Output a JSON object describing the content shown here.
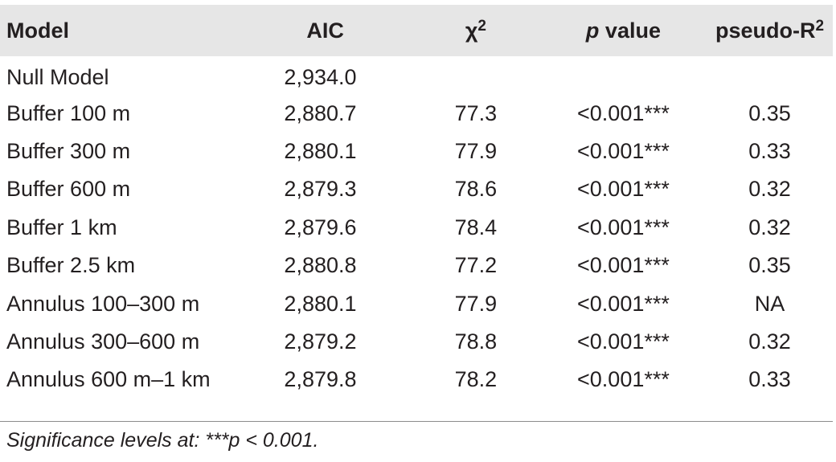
{
  "table": {
    "headers": {
      "model": "Model",
      "aic": "AIC",
      "chi_base": "χ",
      "chi_sup": "2",
      "p_italic": "p",
      "p_rest": " value",
      "r2_base": "pseudo-R",
      "r2_sup": "2"
    },
    "rows": [
      {
        "model": "Null Model",
        "aic": "2,934.0",
        "chi2": "",
        "p": "",
        "r2": ""
      },
      {
        "model": "Buffer 100 m",
        "aic": "2,880.7",
        "chi2": "77.3",
        "p": "<0.001***",
        "r2": "0.35"
      },
      {
        "model": "Buffer 300 m",
        "aic": "2,880.1",
        "chi2": "77.9",
        "p": "<0.001***",
        "r2": "0.33"
      },
      {
        "model": "Buffer 600 m",
        "aic": "2,879.3",
        "chi2": "78.6",
        "p": "<0.001***",
        "r2": "0.32"
      },
      {
        "model": "Buffer 1 km",
        "aic": "2,879.6",
        "chi2": "78.4",
        "p": "<0.001***",
        "r2": "0.32"
      },
      {
        "model": "Buffer 2.5 km",
        "aic": "2,880.8",
        "chi2": "77.2",
        "p": "<0.001***",
        "r2": "0.35"
      },
      {
        "model": "Annulus 100–300 m",
        "aic": "2,880.1",
        "chi2": "77.9",
        "p": "<0.001***",
        "r2": "NA"
      },
      {
        "model": "Annulus 300–600 m",
        "aic": "2,879.2",
        "chi2": "78.8",
        "p": "<0.001***",
        "r2": "0.32"
      },
      {
        "model": "Annulus 600 m–1 km",
        "aic": "2,879.8",
        "chi2": "78.2",
        "p": "<0.001***",
        "r2": "0.33"
      }
    ]
  },
  "footnote": "Significance levels at: ***p < 0.001."
}
